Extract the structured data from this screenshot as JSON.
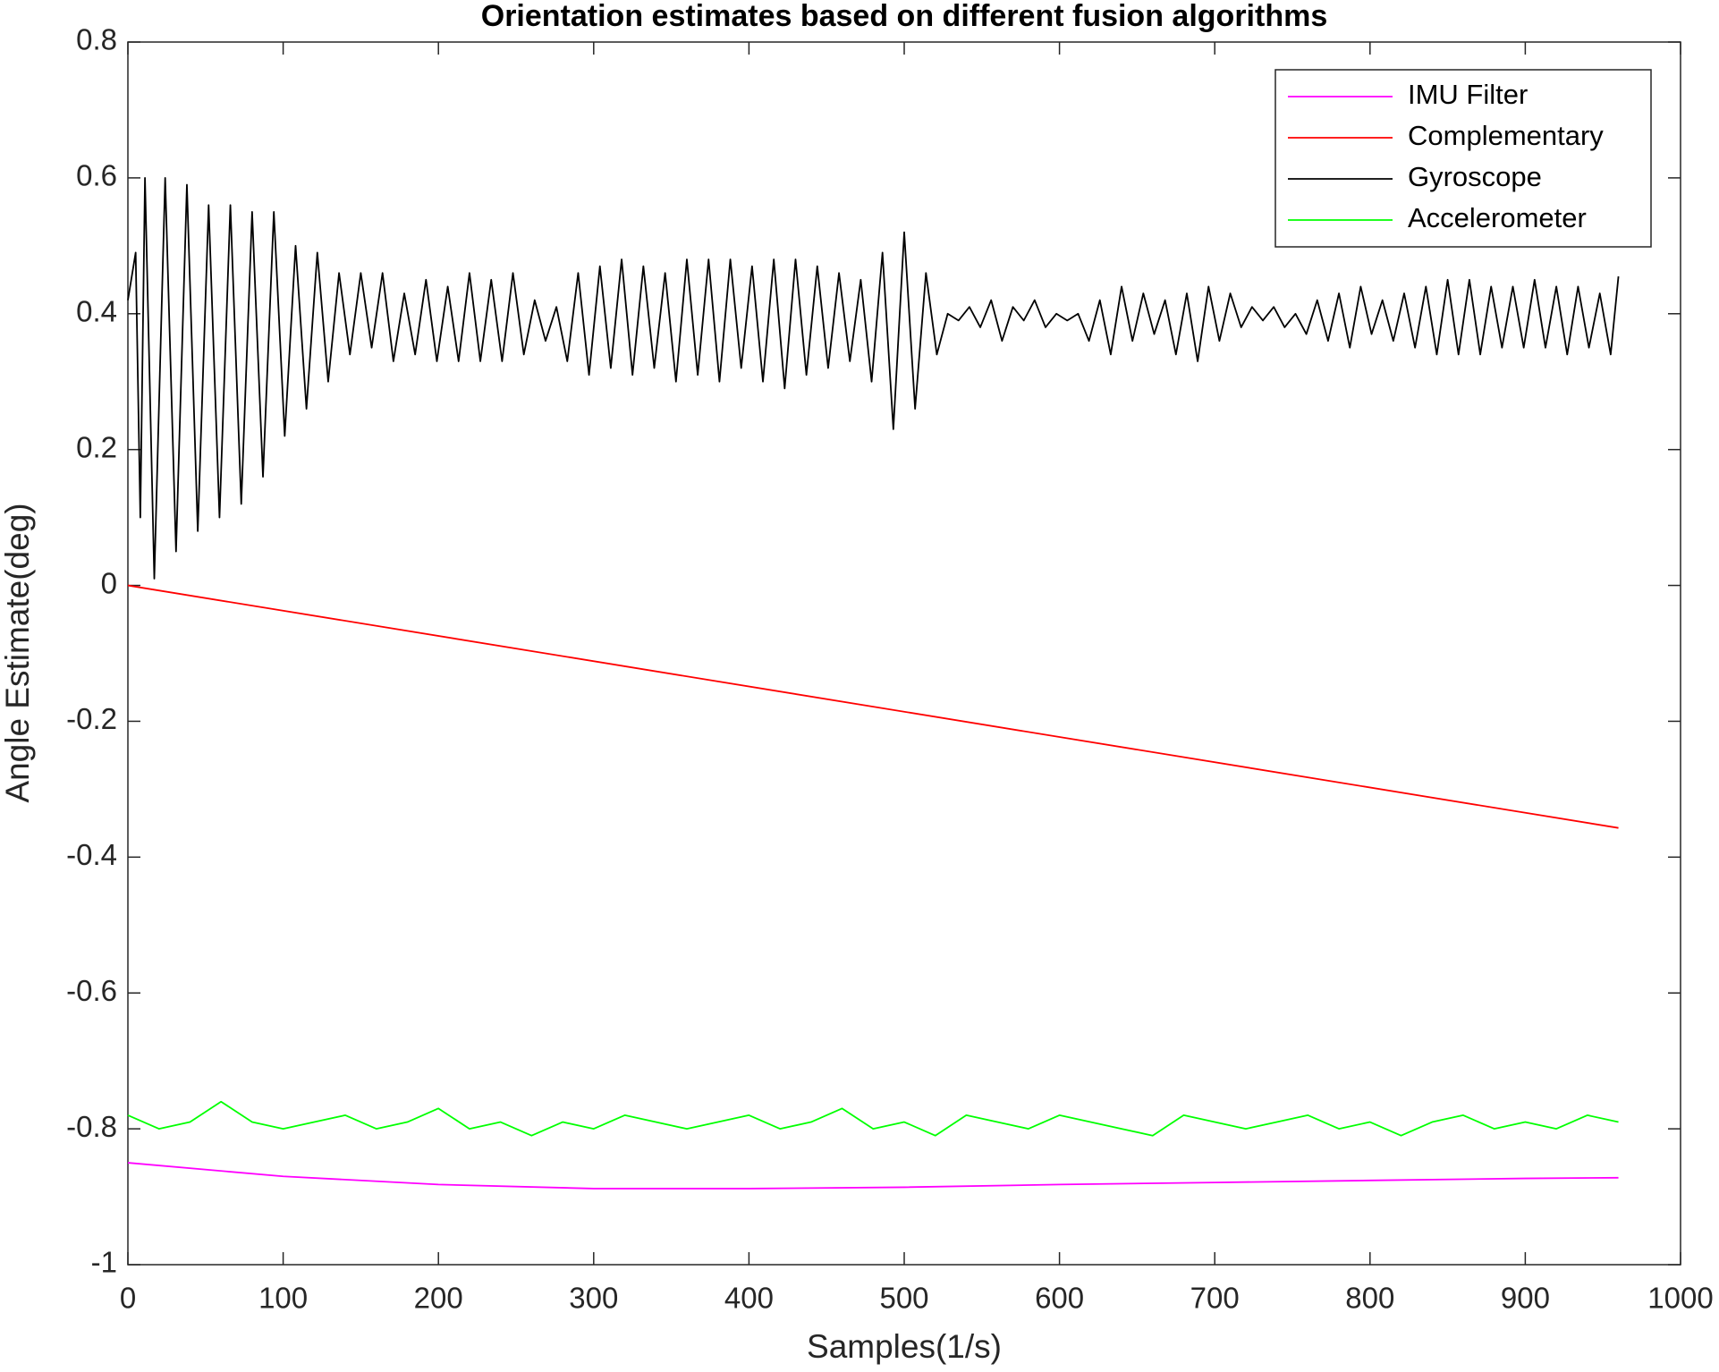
{
  "chart_data": {
    "type": "line",
    "title": "Orientation estimates based on different fusion algorithms",
    "xlabel": "Samples(1/s)",
    "ylabel": "Angle Estimate(deg)",
    "xlim": [
      0,
      1000
    ],
    "ylim": [
      -1,
      0.8
    ],
    "xticks": [
      0,
      100,
      200,
      300,
      400,
      500,
      600,
      700,
      800,
      900,
      1000
    ],
    "yticks": [
      -1,
      -0.8,
      -0.6,
      -0.4,
      -0.2,
      0,
      0.2,
      0.4,
      0.6,
      0.8
    ],
    "legend": "northeast",
    "series": [
      {
        "name": "IMU Filter",
        "color": "#ff00ff",
        "x": [
          0,
          100,
          200,
          300,
          400,
          500,
          600,
          700,
          800,
          900,
          960
        ],
        "values": [
          -0.85,
          -0.87,
          -0.882,
          -0.888,
          -0.888,
          -0.886,
          -0.882,
          -0.879,
          -0.876,
          -0.873,
          -0.872
        ]
      },
      {
        "name": "Complementary",
        "color": "#ff0000",
        "x": [
          0,
          480,
          960
        ],
        "values": [
          0,
          -0.1785,
          -0.357
        ]
      },
      {
        "name": "Gyroscope",
        "color": "#000000",
        "x": [
          0,
          5,
          8,
          11,
          17,
          24,
          31,
          38,
          45,
          52,
          59,
          66,
          73,
          80,
          87,
          94,
          101,
          108,
          115,
          122,
          129,
          136,
          143,
          150,
          157,
          164,
          171,
          178,
          185,
          192,
          199,
          206,
          213,
          220,
          227,
          234,
          241,
          248,
          255,
          262,
          269,
          276,
          283,
          290,
          297,
          304,
          311,
          318,
          325,
          332,
          339,
          346,
          353,
          360,
          367,
          374,
          381,
          388,
          395,
          402,
          409,
          416,
          423,
          430,
          437,
          444,
          451,
          458,
          465,
          472,
          479,
          486,
          493,
          500,
          507,
          514,
          521,
          528,
          535,
          542,
          549,
          556,
          563,
          570,
          577,
          584,
          591,
          598,
          605,
          612,
          619,
          626,
          633,
          640,
          647,
          654,
          661,
          668,
          675,
          682,
          689,
          696,
          703,
          710,
          717,
          724,
          731,
          738,
          745,
          752,
          759,
          766,
          773,
          780,
          787,
          794,
          801,
          808,
          815,
          822,
          829,
          836,
          843,
          850,
          857,
          864,
          871,
          878,
          885,
          892,
          899,
          906,
          913,
          920,
          927,
          934,
          941,
          948,
          955,
          960
        ],
        "values": [
          0.42,
          0.49,
          0.1,
          0.6,
          0.01,
          0.6,
          0.05,
          0.59,
          0.08,
          0.56,
          0.1,
          0.56,
          0.12,
          0.55,
          0.16,
          0.55,
          0.22,
          0.5,
          0.26,
          0.49,
          0.3,
          0.46,
          0.34,
          0.46,
          0.35,
          0.46,
          0.33,
          0.43,
          0.34,
          0.45,
          0.33,
          0.44,
          0.33,
          0.46,
          0.33,
          0.45,
          0.33,
          0.46,
          0.34,
          0.42,
          0.36,
          0.41,
          0.33,
          0.46,
          0.31,
          0.47,
          0.32,
          0.48,
          0.31,
          0.47,
          0.32,
          0.46,
          0.3,
          0.48,
          0.31,
          0.48,
          0.3,
          0.48,
          0.32,
          0.47,
          0.3,
          0.48,
          0.29,
          0.48,
          0.31,
          0.47,
          0.32,
          0.46,
          0.33,
          0.45,
          0.3,
          0.49,
          0.23,
          0.52,
          0.26,
          0.46,
          0.34,
          0.4,
          0.39,
          0.41,
          0.38,
          0.42,
          0.36,
          0.41,
          0.39,
          0.42,
          0.38,
          0.4,
          0.39,
          0.4,
          0.36,
          0.42,
          0.34,
          0.44,
          0.36,
          0.43,
          0.37,
          0.42,
          0.34,
          0.43,
          0.33,
          0.44,
          0.36,
          0.43,
          0.38,
          0.41,
          0.39,
          0.41,
          0.38,
          0.4,
          0.37,
          0.42,
          0.36,
          0.43,
          0.35,
          0.44,
          0.37,
          0.42,
          0.36,
          0.43,
          0.35,
          0.44,
          0.34,
          0.45,
          0.34,
          0.45,
          0.34,
          0.44,
          0.35,
          0.44,
          0.35,
          0.45,
          0.35,
          0.44,
          0.34,
          0.44,
          0.35,
          0.43,
          0.34,
          0.455
        ]
      },
      {
        "name": "Accelerometer",
        "color": "#00ff00",
        "x": [
          0,
          20,
          40,
          60,
          80,
          100,
          120,
          140,
          160,
          180,
          200,
          220,
          240,
          260,
          280,
          300,
          320,
          340,
          360,
          380,
          400,
          420,
          440,
          460,
          480,
          500,
          520,
          540,
          560,
          580,
          600,
          620,
          640,
          660,
          680,
          700,
          720,
          740,
          760,
          780,
          800,
          820,
          840,
          860,
          880,
          900,
          920,
          940,
          960
        ],
        "values": [
          -0.78,
          -0.8,
          -0.79,
          -0.76,
          -0.79,
          -0.8,
          -0.79,
          -0.78,
          -0.8,
          -0.79,
          -0.77,
          -0.8,
          -0.79,
          -0.81,
          -0.79,
          -0.8,
          -0.78,
          -0.79,
          -0.8,
          -0.79,
          -0.78,
          -0.8,
          -0.79,
          -0.77,
          -0.8,
          -0.79,
          -0.81,
          -0.78,
          -0.79,
          -0.8,
          -0.78,
          -0.79,
          -0.8,
          -0.81,
          -0.78,
          -0.79,
          -0.8,
          -0.79,
          -0.78,
          -0.8,
          -0.79,
          -0.81,
          -0.79,
          -0.78,
          -0.8,
          -0.79,
          -0.8,
          -0.78,
          -0.79
        ]
      }
    ]
  }
}
